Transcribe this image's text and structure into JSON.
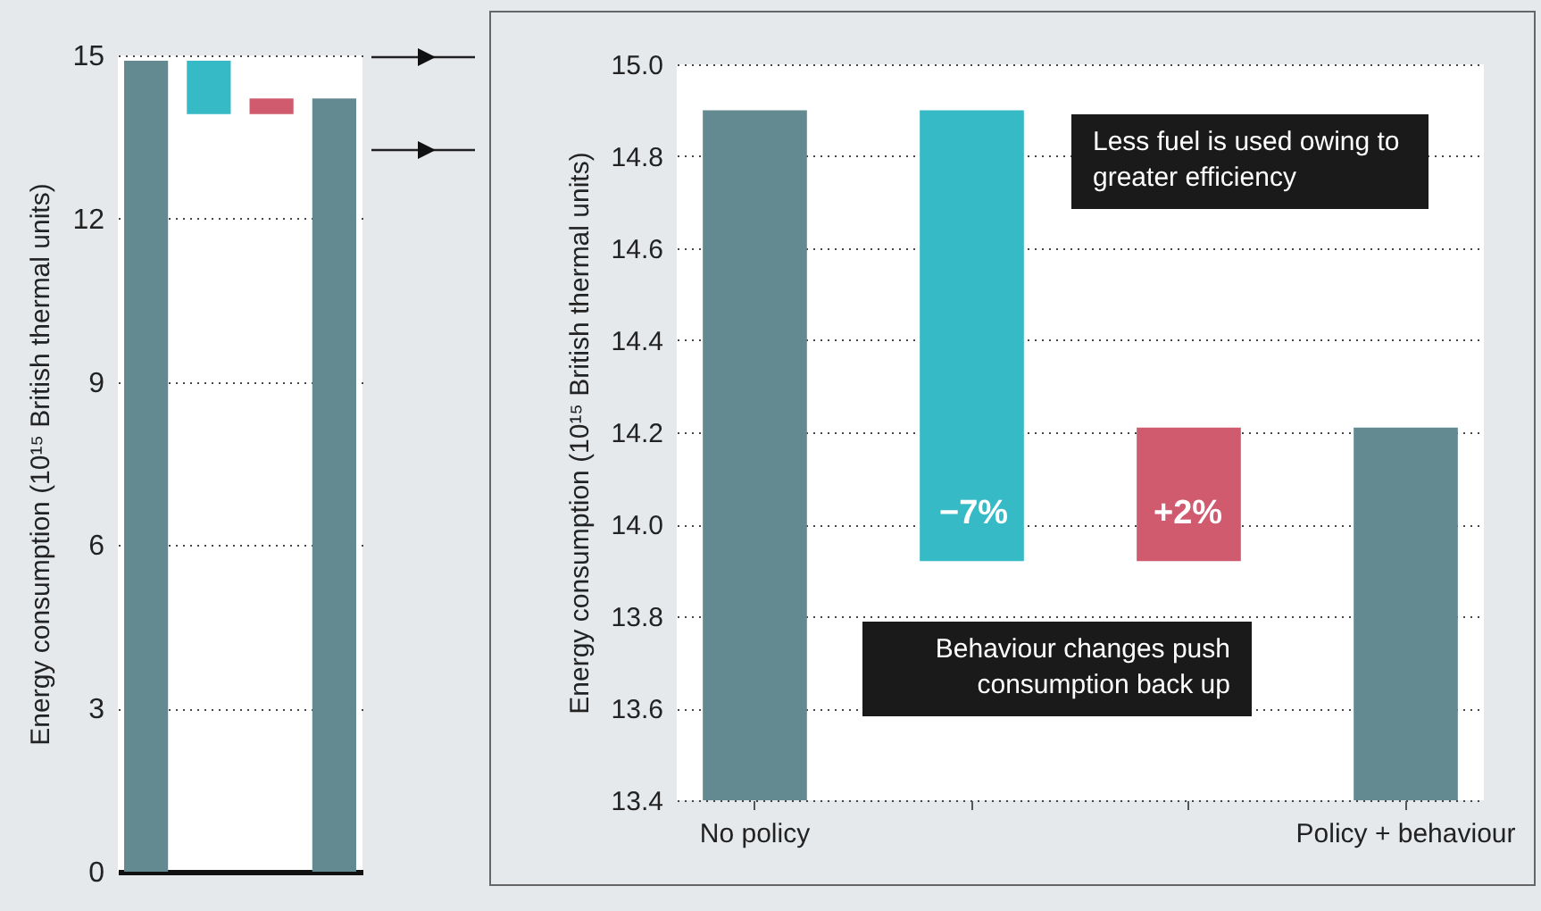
{
  "chart_data": [
    {
      "type": "bar",
      "ylabel": "Energy consumption (10¹⁵ British thermal units)",
      "categories": [
        null,
        null,
        null,
        null
      ],
      "values": [
        14.9,
        -0.98,
        0.29,
        14.21
      ],
      "base": [
        null,
        14.9,
        13.92,
        null
      ],
      "colors": [
        "#628a90",
        "#36bac6",
        "#d05a6e",
        "#628a90"
      ],
      "ylim": [
        0,
        15
      ],
      "yticks": [
        0,
        3,
        6,
        9,
        12,
        15
      ],
      "grid": "y",
      "tick_labels": "y"
    },
    {
      "type": "bar",
      "ylabel": "Energy consumption (10¹⁵ British thermal units)",
      "categories": [
        "No policy",
        null,
        null,
        "Policy + behaviour"
      ],
      "values": [
        14.9,
        -0.98,
        0.29,
        14.21
      ],
      "base": [
        null,
        14.9,
        13.92,
        null
      ],
      "colors": [
        "#628a90",
        "#36bac6",
        "#d05a6e",
        "#628a90"
      ],
      "ylim": [
        13.4,
        15.0
      ],
      "yticks": [
        {
          "value": 13.4,
          "label": "13.4"
        },
        {
          "value": 13.6,
          "label": "13.6"
        },
        {
          "value": 13.8,
          "label": "13.8"
        },
        {
          "value": 14.0,
          "label": "14.0"
        },
        {
          "value": 14.2,
          "label": "14.2"
        },
        {
          "value": 14.4,
          "label": "14.4"
        },
        {
          "value": 14.6,
          "label": "14.6"
        },
        {
          "value": 14.8,
          "label": "14.8"
        },
        {
          "value": 15.0,
          "label": "15.0"
        }
      ],
      "grid": "y",
      "annotations": [
        "Less fuel is used owing to greater efficiency",
        "Behaviour changes push consumption back up",
        "−7%",
        "+2%"
      ]
    }
  ]
}
